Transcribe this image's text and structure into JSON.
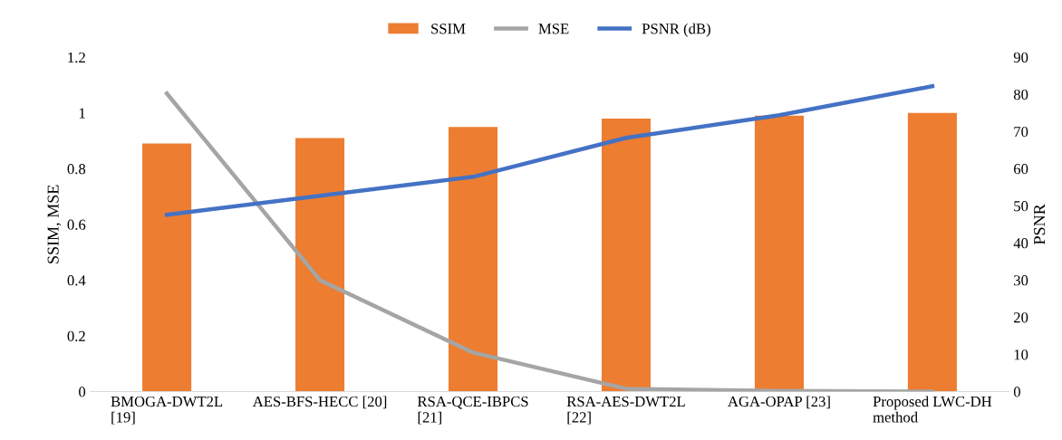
{
  "chart_data": {
    "type": "bar",
    "ylabel": "SSIM, MSE",
    "y2label": "PSNR",
    "categories": [
      "BMOGA-DWT2L\n[19]",
      "AES-BFS-HECC [20]",
      "RSA-QCE-IBPCS\n[21]",
      "RSA-AES-DWT2L\n[22]",
      "AGA-OPAP [23]",
      "Proposed LWC-DH\nmethod"
    ],
    "series": [
      {
        "name": "SSIM",
        "color": "#ed7d31",
        "values": [
          0.89,
          0.91,
          0.95,
          0.98,
          0.99,
          1.0
        ]
      },
      {
        "name": "MSE",
        "type": "line",
        "color": "#a5a5a5",
        "values": [
          1.07,
          0.4,
          0.14,
          0.01,
          0.003,
          0
        ]
      },
      {
        "name": "PSNR (dB)",
        "type": "line",
        "axis": "y2",
        "color": "#4472c4",
        "values": [
          47.6,
          52.7,
          57.8,
          68.3,
          74.4,
          82.2
        ]
      }
    ],
    "ylim": [
      0,
      1.2
    ],
    "yticks": [
      0,
      0.2,
      0.4,
      0.6,
      0.8,
      1,
      1.2
    ],
    "y2lim": [
      0,
      90
    ],
    "y2ticks": [
      0,
      10,
      20,
      30,
      40,
      50,
      60,
      70,
      80,
      90
    ],
    "grid": false,
    "legend": "top",
    "marker": "none",
    "line_style": "solid"
  }
}
